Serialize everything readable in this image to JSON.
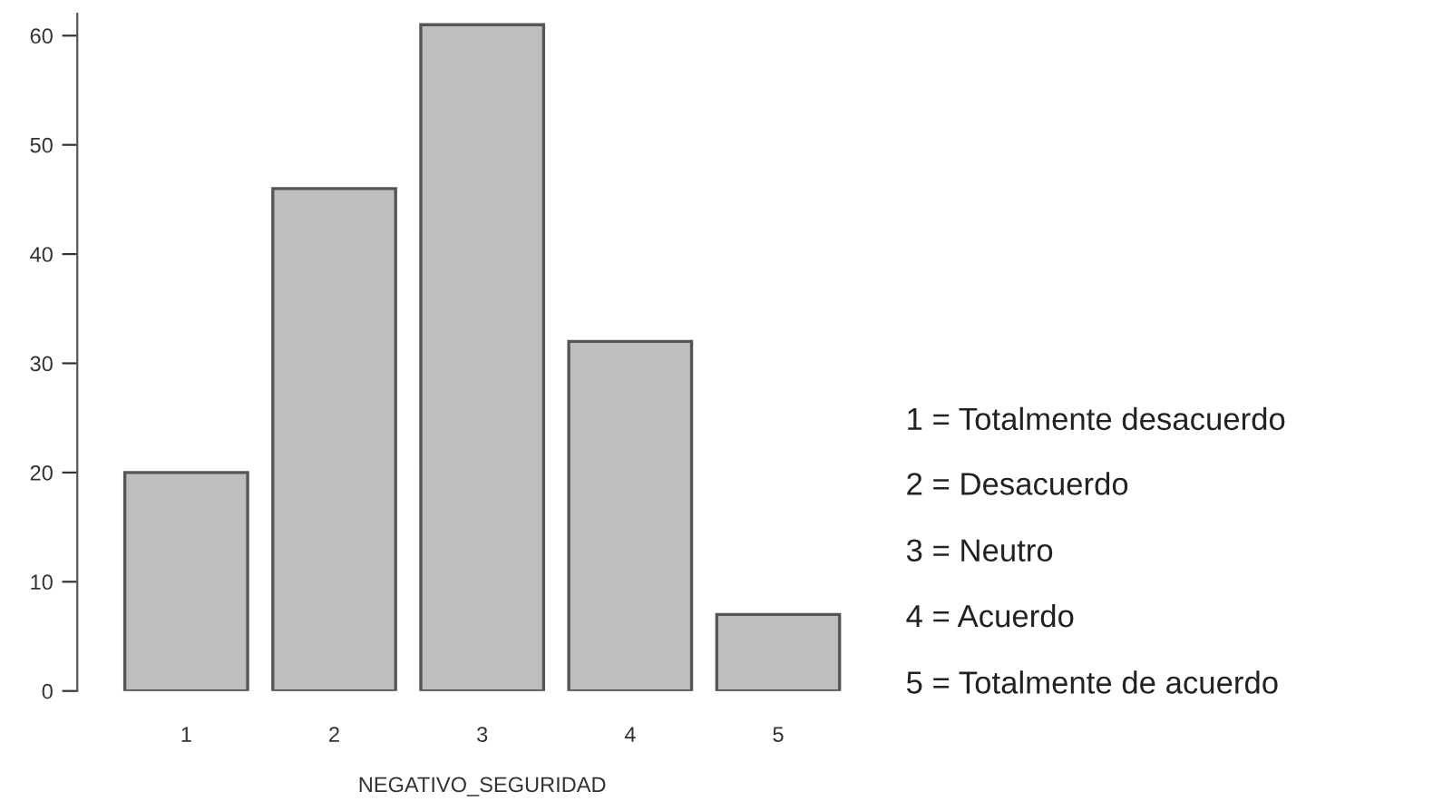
{
  "chart_data": {
    "type": "bar",
    "categories": [
      "1",
      "2",
      "3",
      "4",
      "5"
    ],
    "values": [
      20,
      46,
      61,
      32,
      7
    ],
    "color": "#bebebe",
    "xlabel": "NEGATIVO_SEGURIDAD",
    "ylim": [
      0,
      62
    ],
    "yticks": [
      0,
      10,
      20,
      30,
      40,
      50,
      60
    ],
    "grid": false,
    "annotations": [
      "1 = Totalmente desacuerdo",
      "2 = Desacuerdo",
      "3 = Neutro",
      "4 = Acuerdo",
      "5 = Totalmente de acuerdo"
    ]
  }
}
